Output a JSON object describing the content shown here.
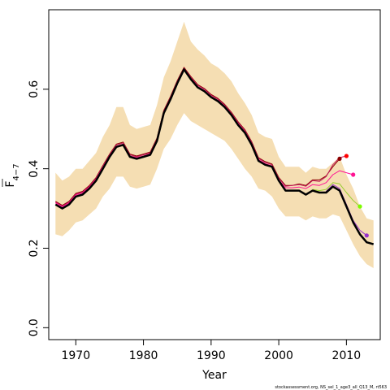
{
  "chart_data": {
    "type": "line",
    "xlabel": "Year",
    "ylabel": "F",
    "ylabel_subscript": "4−7",
    "credit": "stockassessment.org, NS_sel_1_age3_all_Q13_M, rt563",
    "xlim": [
      1966,
      2015
    ],
    "ylim": [
      -0.03,
      0.8
    ],
    "x_ticks": [
      1970,
      1980,
      1990,
      2000,
      2010
    ],
    "y_ticks": [
      0.0,
      0.2,
      0.4,
      0.6
    ],
    "x_tick_labels": [
      "1970",
      "1980",
      "1990",
      "2000",
      "2010"
    ],
    "y_tick_labels": [
      "0.0",
      "0.2",
      "0.4",
      "0.6"
    ],
    "grid": false,
    "colors": {
      "band": "#f5deb3",
      "estimate": "#000000",
      "retro_2009": "#8b0000",
      "retro_2010": "#c2185b",
      "retro_2011": "#ff1493",
      "retro_2012": "#9acd32",
      "retro_2013": "#9932cc"
    },
    "band": {
      "x": [
        1967,
        1968,
        1969,
        1970,
        1971,
        1972,
        1973,
        1974,
        1975,
        1976,
        1977,
        1978,
        1979,
        1980,
        1981,
        1982,
        1983,
        1984,
        1985,
        1986,
        1987,
        1988,
        1989,
        1990,
        1991,
        1992,
        1993,
        1994,
        1995,
        1996,
        1997,
        1998,
        1999,
        2000,
        2001,
        2002,
        2003,
        2004,
        2005,
        2006,
        2007,
        2008,
        2009,
        2010,
        2011,
        2012,
        2013,
        2014
      ],
      "upper": [
        0.39,
        0.37,
        0.38,
        0.4,
        0.4,
        0.42,
        0.44,
        0.48,
        0.51,
        0.555,
        0.555,
        0.51,
        0.5,
        0.505,
        0.51,
        0.56,
        0.63,
        0.67,
        0.72,
        0.77,
        0.72,
        0.7,
        0.685,
        0.665,
        0.655,
        0.64,
        0.62,
        0.59,
        0.565,
        0.535,
        0.49,
        0.48,
        0.475,
        0.43,
        0.405,
        0.405,
        0.405,
        0.39,
        0.405,
        0.4,
        0.4,
        0.415,
        0.43,
        0.385,
        0.35,
        0.305,
        0.275,
        0.27
      ],
      "lower": [
        0.235,
        0.23,
        0.245,
        0.265,
        0.27,
        0.285,
        0.3,
        0.33,
        0.35,
        0.38,
        0.38,
        0.355,
        0.35,
        0.355,
        0.36,
        0.4,
        0.45,
        0.475,
        0.51,
        0.54,
        0.52,
        0.51,
        0.5,
        0.49,
        0.48,
        0.47,
        0.45,
        0.425,
        0.4,
        0.38,
        0.35,
        0.345,
        0.33,
        0.3,
        0.28,
        0.28,
        0.28,
        0.27,
        0.28,
        0.275,
        0.275,
        0.285,
        0.28,
        0.245,
        0.21,
        0.18,
        0.16,
        0.15
      ]
    },
    "series": [
      {
        "x": [
          1967,
          1968,
          1969,
          1970,
          1971,
          1972,
          1973,
          1974,
          1975,
          1976,
          1977,
          1978,
          1979,
          1980,
          1981,
          1982,
          1983,
          1984,
          1985,
          1986,
          1987,
          1988,
          1989,
          1990,
          1991,
          1992,
          1993,
          1994,
          1995,
          1996,
          1997,
          1998,
          1999,
          2000,
          2001,
          2002,
          2003,
          2004,
          2005,
          2006,
          2007,
          2008,
          2009,
          2010,
          2011,
          2012,
          2013,
          2014
        ],
        "values": [
          0.31,
          0.3,
          0.31,
          0.33,
          0.335,
          0.35,
          0.37,
          0.4,
          0.43,
          0.455,
          0.46,
          0.43,
          0.425,
          0.43,
          0.435,
          0.47,
          0.54,
          0.575,
          0.615,
          0.65,
          0.625,
          0.605,
          0.595,
          0.58,
          0.57,
          0.555,
          0.535,
          0.51,
          0.49,
          0.46,
          0.42,
          0.41,
          0.405,
          0.37,
          0.345,
          0.345,
          0.345,
          0.335,
          0.345,
          0.34,
          0.34,
          0.355,
          0.345,
          0.305,
          0.265,
          0.235,
          0.215,
          0.21
        ],
        "color": "#000000",
        "width": 2.5
      },
      {
        "x": [
          1967,
          1968,
          1969,
          1970,
          1971,
          1972,
          1973,
          1974,
          1975,
          1976,
          1977,
          1978,
          1979,
          1980,
          1981,
          1982,
          1983,
          1984,
          1985,
          1986,
          1987,
          1988,
          1989,
          1990,
          1991,
          1992,
          1993,
          1994,
          1995,
          1996,
          1997,
          1998,
          1999,
          2000,
          2001,
          2002,
          2003,
          2004,
          2005,
          2006,
          2007,
          2008,
          2009
        ],
        "values": [
          0.318,
          0.308,
          0.318,
          0.338,
          0.343,
          0.358,
          0.378,
          0.408,
          0.437,
          0.462,
          0.467,
          0.437,
          0.432,
          0.437,
          0.442,
          0.477,
          0.547,
          0.582,
          0.622,
          0.655,
          0.632,
          0.612,
          0.602,
          0.587,
          0.577,
          0.562,
          0.542,
          0.518,
          0.498,
          0.468,
          0.428,
          0.418,
          0.412,
          0.378,
          0.358,
          0.358,
          0.362,
          0.358,
          0.372,
          0.372,
          0.382,
          0.405,
          0.425
        ],
        "color": "#8b0000",
        "width": 1
      },
      {
        "x": [
          1967,
          1968,
          1969,
          1970,
          1971,
          1972,
          1973,
          1974,
          1975,
          1976,
          1977,
          1978,
          1979,
          1980,
          1981,
          1982,
          1983,
          1984,
          1985,
          1986,
          1987,
          1988,
          1989,
          1990,
          1991,
          1992,
          1993,
          1994,
          1995,
          1996,
          1997,
          1998,
          1999,
          2000,
          2001,
          2002,
          2003,
          2004,
          2005,
          2006,
          2007,
          2008,
          2009,
          2010
        ],
        "values": [
          0.316,
          0.306,
          0.316,
          0.336,
          0.341,
          0.356,
          0.376,
          0.406,
          0.435,
          0.46,
          0.465,
          0.435,
          0.43,
          0.435,
          0.44,
          0.475,
          0.545,
          0.58,
          0.62,
          0.653,
          0.63,
          0.61,
          0.6,
          0.585,
          0.575,
          0.56,
          0.54,
          0.516,
          0.496,
          0.466,
          0.426,
          0.416,
          0.41,
          0.376,
          0.356,
          0.358,
          0.36,
          0.356,
          0.37,
          0.368,
          0.38,
          0.41,
          0.428,
          0.432
        ],
        "color": "#c2185b",
        "width": 1
      },
      {
        "x": [
          1967,
          1968,
          1969,
          1970,
          1971,
          1972,
          1973,
          1974,
          1975,
          1976,
          1977,
          1978,
          1979,
          1980,
          1981,
          1982,
          1983,
          1984,
          1985,
          1986,
          1987,
          1988,
          1989,
          1990,
          1991,
          1992,
          1993,
          1994,
          1995,
          1996,
          1997,
          1998,
          1999,
          2000,
          2001,
          2002,
          2003,
          2004,
          2005,
          2006,
          2007,
          2008,
          2009,
          2010,
          2011
        ],
        "values": [
          0.314,
          0.304,
          0.314,
          0.334,
          0.339,
          0.354,
          0.374,
          0.404,
          0.433,
          0.457,
          0.462,
          0.432,
          0.428,
          0.432,
          0.438,
          0.472,
          0.542,
          0.577,
          0.617,
          0.648,
          0.627,
          0.607,
          0.597,
          0.582,
          0.572,
          0.557,
          0.537,
          0.513,
          0.493,
          0.463,
          0.423,
          0.413,
          0.407,
          0.372,
          0.352,
          0.352,
          0.354,
          0.35,
          0.36,
          0.358,
          0.365,
          0.385,
          0.395,
          0.39,
          0.385
        ],
        "color": "#ff1493",
        "width": 1
      },
      {
        "x": [
          2005,
          2006,
          2007,
          2008,
          2009,
          2010,
          2011,
          2012
        ],
        "values": [
          0.348,
          0.345,
          0.348,
          0.365,
          0.362,
          0.34,
          0.32,
          0.305
        ],
        "color": "#9acd32",
        "width": 1
      },
      {
        "x": [
          2007,
          2008,
          2009,
          2010,
          2011,
          2012,
          2013
        ],
        "values": [
          0.343,
          0.36,
          0.35,
          0.31,
          0.27,
          0.245,
          0.232
        ],
        "color": "#9932cc",
        "width": 1
      }
    ],
    "terminal_points": [
      {
        "x": 2009,
        "y": 0.425,
        "color": "#8b0000"
      },
      {
        "x": 2010,
        "y": 0.432,
        "color": "#ff0000"
      },
      {
        "x": 2011,
        "y": 0.385,
        "color": "#ff1493"
      },
      {
        "x": 2012,
        "y": 0.305,
        "color": "#7cfc00"
      },
      {
        "x": 2013,
        "y": 0.232,
        "color": "#9932cc"
      }
    ]
  }
}
